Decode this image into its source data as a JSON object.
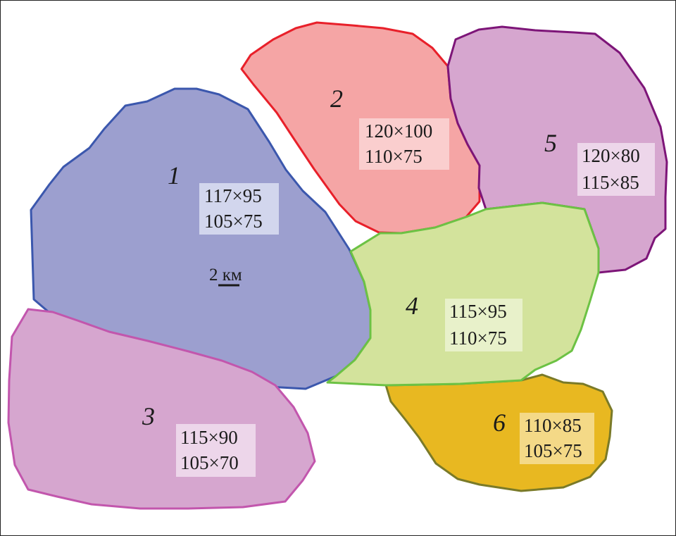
{
  "zones": [
    {
      "id": "1",
      "number": "1",
      "dims": [
        "117×95",
        "105×75"
      ],
      "fill": "#9c9fcf",
      "stroke": "#3b57ad",
      "label_bg": "#d8dbef"
    },
    {
      "id": "2",
      "number": "2",
      "dims": [
        "120×100",
        "110×75"
      ],
      "fill": "#f5a5a5",
      "stroke": "#e8202a",
      "label_bg": "#fbd3d3"
    },
    {
      "id": "3",
      "number": "3",
      "dims": [
        "115×90",
        "105×70"
      ],
      "fill": "#d6a6cf",
      "stroke": "#c256ad",
      "label_bg": "#efdcec"
    },
    {
      "id": "4",
      "number": "4",
      "dims": [
        "115×95",
        "110×75"
      ],
      "fill": "#d3e39c",
      "stroke": "#6cc244",
      "label_bg": "#eaf2cf"
    },
    {
      "id": "5",
      "number": "5",
      "dims": [
        "120×80",
        "115×85"
      ],
      "fill": "#d6a6cf",
      "stroke": "#7d1578",
      "label_bg": "#efdcec"
    },
    {
      "id": "6",
      "number": "6",
      "dims": [
        "110×85",
        "105×75"
      ],
      "fill": "#e8b821",
      "stroke": "#7a7a28",
      "label_bg": "#f5dd92"
    }
  ],
  "scale_bar": {
    "label": "2 км"
  }
}
